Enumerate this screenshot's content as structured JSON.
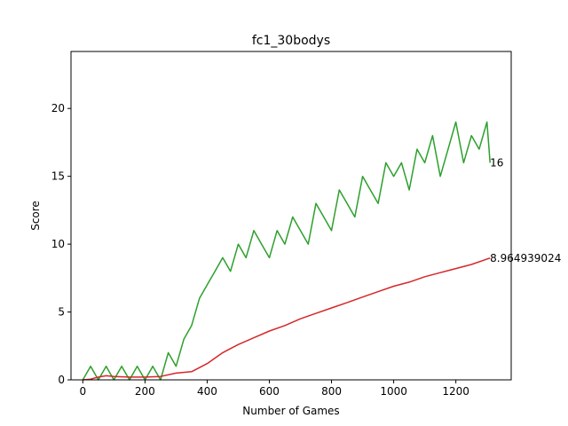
{
  "chart_data": {
    "type": "line",
    "title": "fc1_30bodys",
    "xlabel": "Number of Games",
    "ylabel": "Score",
    "xlim": [
      -38,
      1378
    ],
    "ylim": [
      0,
      24.2
    ],
    "xticks": [
      0,
      200,
      400,
      600,
      800,
      1000,
      1200
    ],
    "yticks": [
      0,
      5,
      10,
      15,
      20
    ],
    "grid": false,
    "legend": "none",
    "series": [
      {
        "color": "#2ca02c",
        "x": [
          0,
          25,
          50,
          75,
          100,
          125,
          150,
          175,
          200,
          225,
          250,
          275,
          300,
          325,
          350,
          375,
          400,
          425,
          450,
          475,
          500,
          525,
          550,
          575,
          600,
          625,
          650,
          675,
          700,
          725,
          750,
          775,
          800,
          825,
          850,
          875,
          900,
          925,
          950,
          975,
          1000,
          1025,
          1050,
          1075,
          1100,
          1125,
          1150,
          1175,
          1200,
          1225,
          1250,
          1275,
          1300,
          1310
        ],
        "y": [
          0,
          1,
          0,
          1,
          0,
          1,
          0,
          1,
          0,
          1,
          0,
          2,
          1,
          3,
          4,
          6,
          7,
          8,
          9,
          8,
          10,
          9,
          11,
          10,
          9,
          11,
          10,
          12,
          11,
          10,
          13,
          12,
          11,
          14,
          13,
          12,
          15,
          14,
          13,
          16,
          15,
          16,
          14,
          17,
          16,
          18,
          15,
          17,
          19,
          16,
          18,
          17,
          19,
          16
        ]
      },
      {
        "color": "#d62728",
        "x": [
          0,
          25,
          50,
          75,
          100,
          150,
          200,
          250,
          300,
          350,
          400,
          450,
          500,
          550,
          600,
          650,
          700,
          750,
          800,
          850,
          900,
          950,
          1000,
          1050,
          1100,
          1150,
          1200,
          1250,
          1300,
          1310
        ],
        "y": [
          0,
          0.05,
          0.2,
          0.3,
          0.25,
          0.2,
          0.2,
          0.25,
          0.5,
          0.6,
          1.2,
          2.0,
          2.6,
          3.1,
          3.6,
          4.0,
          4.5,
          4.9,
          5.3,
          5.7,
          6.1,
          6.5,
          6.9,
          7.2,
          7.6,
          7.9,
          8.2,
          8.5,
          8.9,
          8.964939024
        ]
      }
    ],
    "annotations": [
      {
        "text": "16",
        "x": 1310,
        "y": 16
      },
      {
        "text": "8.964939024",
        "x": 1310,
        "y": 8.964939024
      }
    ]
  }
}
